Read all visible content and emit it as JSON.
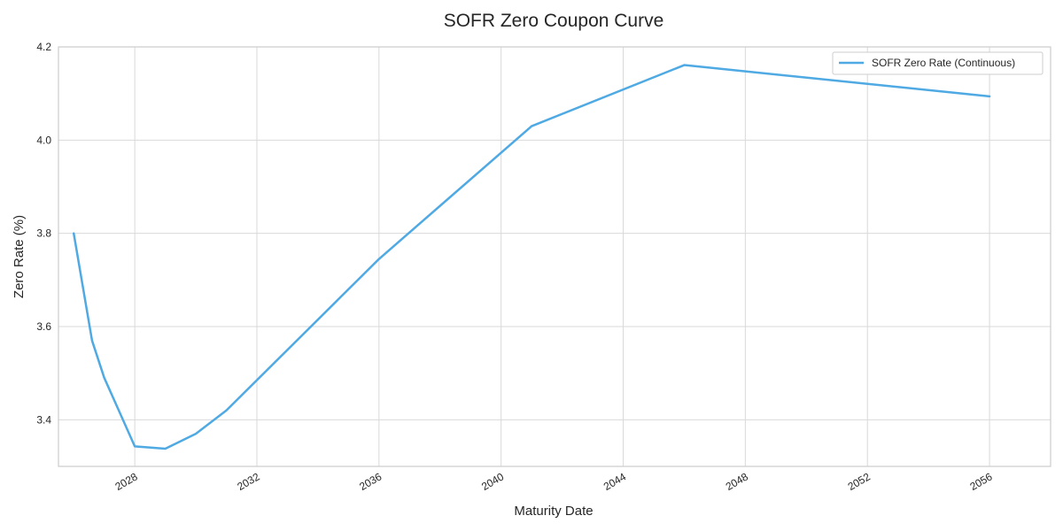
{
  "chart_data": {
    "type": "line",
    "title": "SOFR Zero Coupon Curve",
    "xlabel": "Maturity Date",
    "ylabel": "Zero Rate (%)",
    "xlim": [
      2025.5,
      2058.0
    ],
    "ylim": [
      3.3,
      4.2
    ],
    "x_ticks": [
      2028,
      2032,
      2036,
      2040,
      2044,
      2048,
      2052,
      2056
    ],
    "y_ticks": [
      3.4,
      3.6,
      3.8,
      4.0,
      4.2
    ],
    "y_tick_labels": [
      "3.4",
      "3.6",
      "3.8",
      "4.0",
      "4.2"
    ],
    "grid": true,
    "legend_position": "top-right",
    "series": [
      {
        "name": "SOFR Zero Rate (Continuous)",
        "color": "#4fa9e3",
        "x": [
          2026.0,
          2026.6,
          2027.0,
          2028.0,
          2029.0,
          2030.0,
          2031.0,
          2036.0,
          2041.0,
          2046.0,
          2056.0
        ],
        "y": [
          3.8,
          3.57,
          3.49,
          3.343,
          3.338,
          3.37,
          3.42,
          3.745,
          4.03,
          4.161,
          4.094
        ]
      }
    ]
  }
}
